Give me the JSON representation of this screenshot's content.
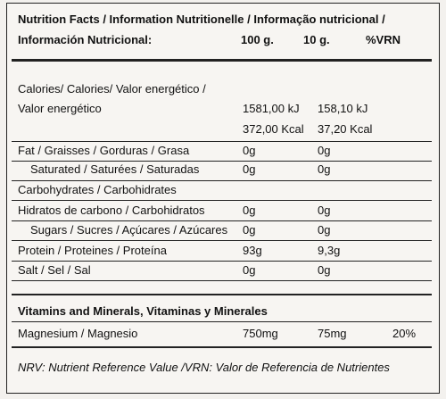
{
  "header": {
    "title_line1": "Nutrition Facts / Information Nutritionelle / Informação nutricional /",
    "title_line2": "Información Nutricional:",
    "columns": [
      "100 g.",
      "10 g.",
      "%VRN"
    ]
  },
  "rows": [
    {
      "label": "Calories/ Calories/ Valor energético /"
    },
    {
      "label": "Valor energético",
      "per_100g": "1581,00 kJ",
      "per_10g": "158,10 kJ"
    },
    {
      "per_100g": "372,00 Kcal",
      "per_10g": "37,20 Kcal"
    },
    {
      "label": "Fat / Graisses / Gorduras / Grasa",
      "per_100g": "0g",
      "per_10g": "0g"
    },
    {
      "label": "Saturated / Saturées / Saturadas",
      "per_100g": "0g",
      "per_10g": "0g"
    },
    {
      "label": "Carbohydrates / Carbohidrates"
    },
    {
      "label": "Hidratos de carbono / Carbohidratos",
      "per_100g": "0g",
      "per_10g": "0g"
    },
    {
      "label": "Sugars / Sucres / Açúcares / Azúcares",
      "per_100g": "0g",
      "per_10g": "0g"
    },
    {
      "label": "Protein / Proteines / Proteína",
      "per_100g": "93g",
      "per_10g": "9,3g"
    },
    {
      "label": "Salt / Sel / Sal",
      "per_100g": "0g",
      "per_10g": "0g"
    }
  ],
  "section": {
    "title": "Vitamins and Minerals, Vitaminas y Minerales",
    "rows": [
      {
        "label": "Magnesium / Magnesio",
        "per_100g": "750mg",
        "per_10g": "75mg",
        "vrn": "20%"
      }
    ]
  },
  "footer": "NRV: Nutrient Reference Value /VRN: Valor de Referencia de Nutrientes"
}
